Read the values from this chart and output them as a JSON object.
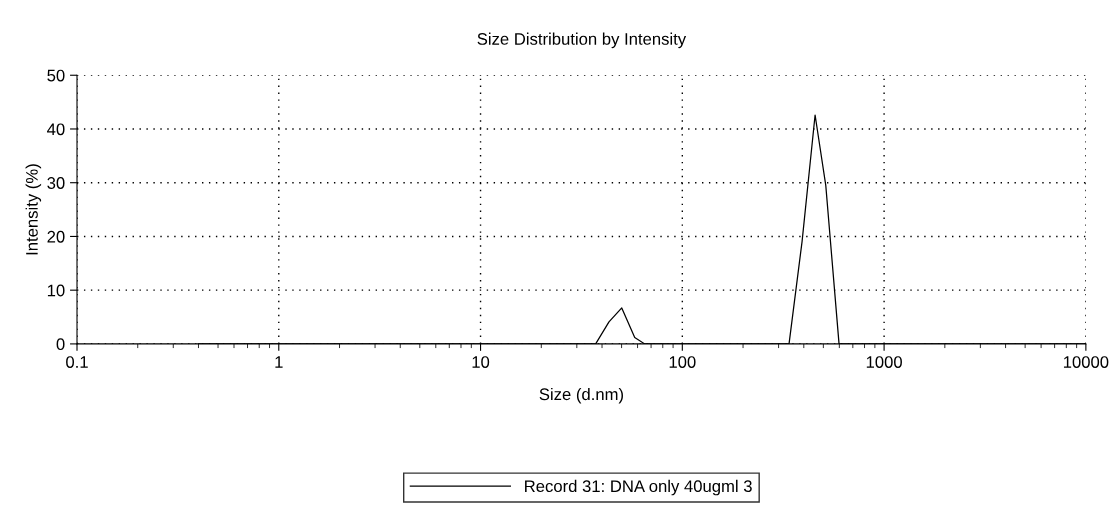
{
  "chart_data": {
    "type": "line",
    "title": "Size Distribution by Intensity",
    "xlabel": "Size (d.nm)",
    "ylabel": "Intensity (%)",
    "log": "x",
    "xlim": [
      0.1,
      10000
    ],
    "xticks": [
      0.1,
      1,
      10,
      100,
      1000,
      10000
    ],
    "ylim": [
      0,
      50
    ],
    "yticks": [
      0,
      10,
      20,
      30,
      40,
      50
    ],
    "grid": true,
    "legend": "bottom",
    "marker": "none",
    "line_style": "solid",
    "series": [
      {
        "name": "Record 31: DNA only 40ugml 3",
        "color": "#000000",
        "x": [
          0.4,
          37.2,
          43.3,
          50.1,
          58.1,
          65.1,
          338,
          392,
          455,
          514,
          598,
          10000
        ],
        "values": [
          0,
          0,
          4.1,
          6.7,
          1.2,
          0,
          0,
          19,
          42.6,
          29.5,
          0,
          0
        ]
      }
    ]
  }
}
